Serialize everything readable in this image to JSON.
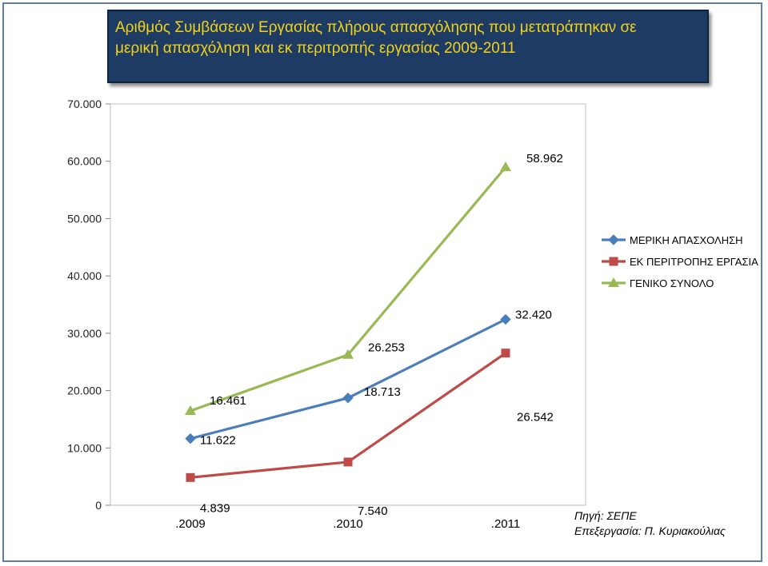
{
  "title": "Αριθμός  Συμβάσεων Εργασίας  πλήρους απασχόλησης που μετατράπηκαν σε\nμερική απασχόληση και εκ περιτροπής εργασίας 2009-2011",
  "source_line1": "Πηγή: ΣΕΠΕ",
  "source_line2": "Επεξεργασία: Π. Κυριακούλιας",
  "chart_data": {
    "type": "line",
    "categories": [
      ".2009",
      ".2010",
      ".2011"
    ],
    "y_ticks": [
      "0",
      "10.000",
      "20.000",
      "30.000",
      "40.000",
      "50.000",
      "60.000",
      "70.000"
    ],
    "ylim": [
      0,
      70000
    ],
    "grid": false,
    "legend_position": "right",
    "series": [
      {
        "name": "ΜΕΡΙΚΗ ΑΠΑΣΧΟΛΗΣΗ",
        "values": [
          11622,
          18713,
          32420
        ],
        "labels": [
          "11.622",
          "18.713",
          "32.420"
        ],
        "color": "#4a7ebb",
        "marker": "diamond"
      },
      {
        "name": "ΕΚ ΠΕΡΙΤΡΟΠΗΣ ΕΡΓΑΣΙΑ",
        "values": [
          4839,
          7540,
          26542
        ],
        "labels": [
          "4.839",
          "7.540",
          "26.542"
        ],
        "color": "#be4b48",
        "marker": "square"
      },
      {
        "name": "ΓΕΝΙΚΟ ΣΥΝΟΛΟ",
        "values": [
          16461,
          26253,
          58962
        ],
        "labels": [
          "16.461",
          "26.253",
          "58.962"
        ],
        "color": "#98b954",
        "marker": "triangle"
      }
    ]
  }
}
